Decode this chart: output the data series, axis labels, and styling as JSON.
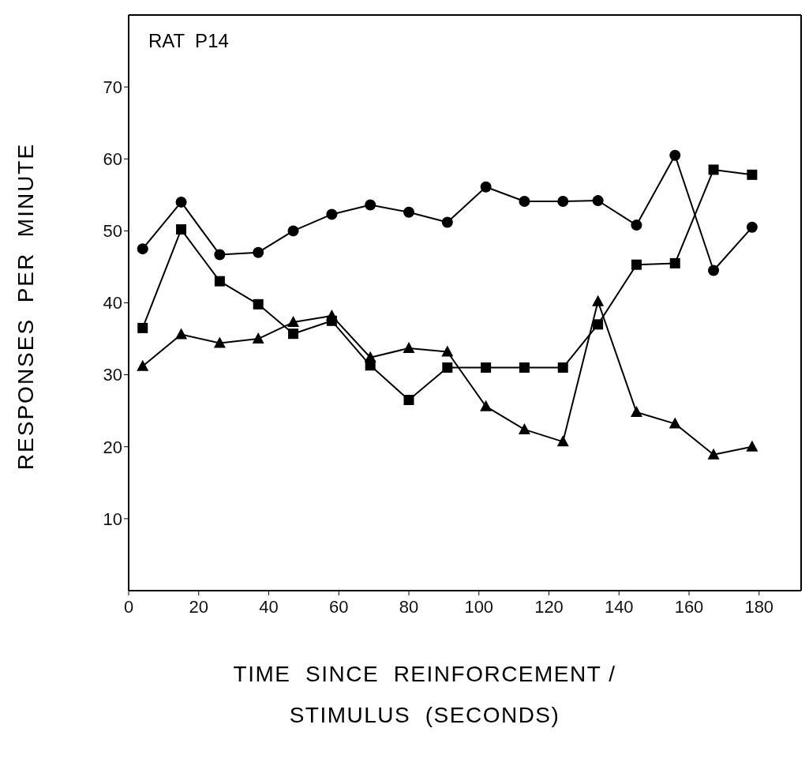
{
  "chart_data": {
    "type": "line",
    "title": "RAT  P14",
    "xlabel": "TIME  SINCE  REINFORCEMENT / STIMULUS  (SECONDS)",
    "ylabel": "RESPONSES  PER  MINUTE",
    "x": [
      4,
      15,
      26,
      37,
      47,
      58,
      69,
      80,
      91,
      102,
      113,
      124,
      134,
      145,
      156,
      167,
      178
    ],
    "series": [
      {
        "color": "#000000",
        "marker": "circle",
        "values": [
          47.5,
          54,
          46.7,
          47,
          50,
          52.3,
          53.6,
          52.6,
          51.2,
          56.1,
          54.1,
          54.1,
          54.2,
          50.8,
          60.5,
          44.5,
          50.5
        ]
      },
      {
        "color": "#000000",
        "marker": "square",
        "values": [
          36.5,
          50.2,
          43,
          39.8,
          35.7,
          37.5,
          31.3,
          26.5,
          31,
          31,
          31,
          31,
          37,
          45.3,
          45.5,
          58.5,
          57.8
        ]
      },
      {
        "color": "#000000",
        "marker": "triangle",
        "values": [
          31.2,
          35.6,
          34.4,
          35,
          37.3,
          38.2,
          32.4,
          33.7,
          33.2,
          25.6,
          22.4,
          20.7,
          40.2,
          24.8,
          23.2,
          18.9,
          20
        ]
      }
    ],
    "xlim": [
      0,
      192
    ],
    "xticks": [
      0,
      20,
      40,
      60,
      80,
      100,
      120,
      140,
      160,
      180
    ],
    "ylim": [
      0,
      80
    ],
    "yticks": [
      10,
      20,
      30,
      40,
      50,
      60,
      70
    ],
    "grid": false,
    "legend": false,
    "line_style": "solid"
  }
}
